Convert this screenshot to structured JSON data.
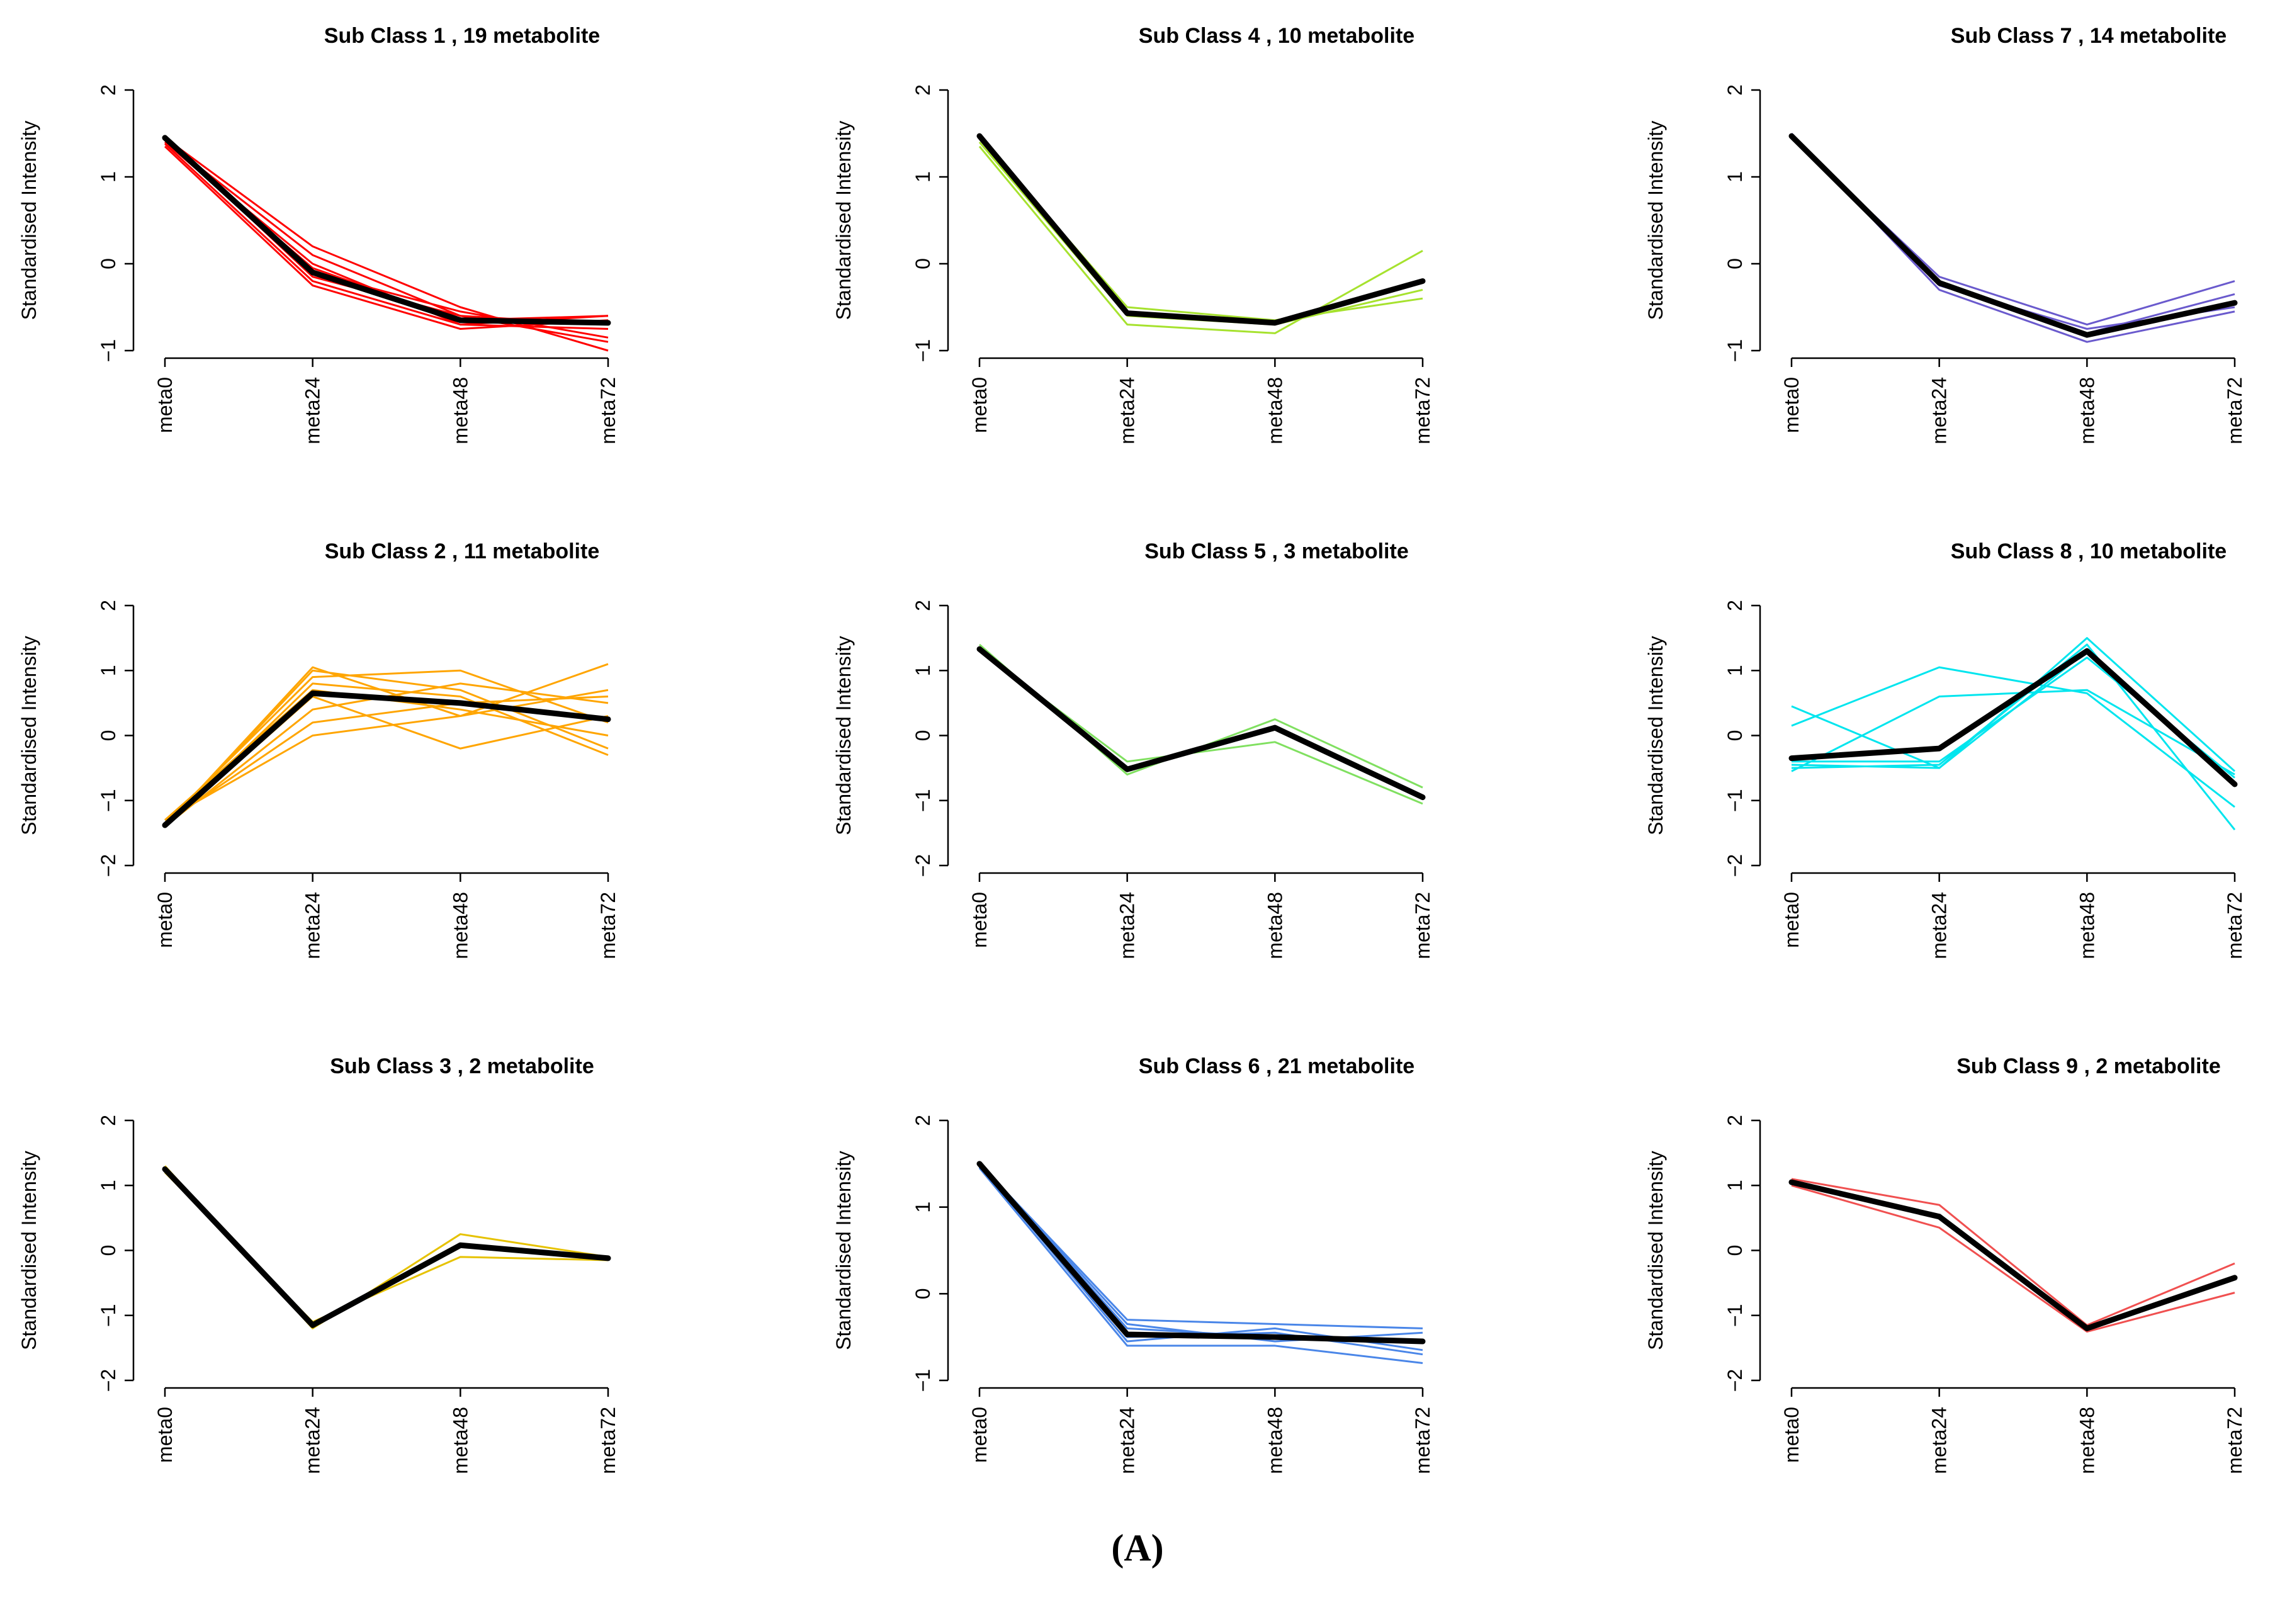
{
  "caption": "(A)",
  "colors": {
    "mean_line": "#000000"
  },
  "chart_data": [
    {
      "type": "line",
      "title": "Sub Class  1  , 19 metabolite",
      "ylabel": "Standardised Intensity",
      "xlabel": "",
      "categories": [
        "meta0",
        "meta24",
        "meta48",
        "meta72"
      ],
      "ylim": [
        -1,
        2
      ],
      "yticks": [
        -1,
        0,
        1,
        2
      ],
      "color": "#ff0000",
      "series": [
        {
          "values": [
            1.45,
            -0.15,
            -0.6,
            -0.7
          ]
        },
        {
          "values": [
            1.35,
            -0.25,
            -0.75,
            -0.65
          ]
        },
        {
          "values": [
            1.45,
            0.2,
            -0.5,
            -1.0
          ]
        },
        {
          "values": [
            1.4,
            0.0,
            -0.7,
            -0.6
          ]
        },
        {
          "values": [
            1.45,
            -0.1,
            -0.55,
            -0.85
          ]
        },
        {
          "values": [
            1.38,
            -0.2,
            -0.7,
            -0.75
          ]
        },
        {
          "values": [
            1.42,
            0.1,
            -0.6,
            -0.9
          ]
        },
        {
          "values": [
            1.4,
            -0.05,
            -0.65,
            -0.6
          ]
        }
      ],
      "mean": [
        1.45,
        -0.1,
        -0.65,
        -0.68
      ]
    },
    {
      "type": "line",
      "title": "Sub Class  2  , 11 metabolite",
      "ylabel": "Standardised Intensity",
      "xlabel": "",
      "categories": [
        "meta0",
        "meta24",
        "meta48",
        "meta72"
      ],
      "ylim": [
        -2,
        2
      ],
      "yticks": [
        -2,
        -1,
        0,
        1,
        2
      ],
      "color": "#ffa500",
      "series": [
        {
          "values": [
            -1.4,
            1.05,
            0.3,
            1.1
          ]
        },
        {
          "values": [
            -1.35,
            0.9,
            1.0,
            0.2
          ]
        },
        {
          "values": [
            -1.4,
            0.4,
            0.8,
            0.5
          ]
        },
        {
          "values": [
            -1.3,
            0.0,
            0.3,
            0.7
          ]
        },
        {
          "values": [
            -1.4,
            0.6,
            -0.2,
            0.3
          ]
        },
        {
          "values": [
            -1.4,
            0.8,
            0.6,
            -0.3
          ]
        },
        {
          "values": [
            -1.35,
            0.2,
            0.5,
            0.6
          ]
        },
        {
          "values": [
            -1.4,
            1.0,
            0.7,
            -0.2
          ]
        },
        {
          "values": [
            -1.3,
            0.7,
            0.4,
            0.0
          ]
        }
      ],
      "mean": [
        -1.38,
        0.65,
        0.5,
        0.25
      ]
    },
    {
      "type": "line",
      "title": "Sub Class  3  , 2 metabolite",
      "ylabel": "Standardised Intensity",
      "xlabel": "",
      "categories": [
        "meta0",
        "meta24",
        "meta48",
        "meta72"
      ],
      "ylim": [
        -2,
        2
      ],
      "yticks": [
        -2,
        -1,
        0,
        1,
        2
      ],
      "color": "#e6c200",
      "series": [
        {
          "values": [
            1.3,
            -1.2,
            0.25,
            -0.1
          ]
        },
        {
          "values": [
            1.2,
            -1.1,
            -0.1,
            -0.15
          ]
        }
      ],
      "mean": [
        1.25,
        -1.15,
        0.08,
        -0.12
      ]
    },
    {
      "type": "line",
      "title": "Sub Class  4  , 10 metabolite",
      "ylabel": "Standardised Intensity",
      "xlabel": "",
      "categories": [
        "meta0",
        "meta24",
        "meta48",
        "meta72"
      ],
      "ylim": [
        -1,
        2
      ],
      "yticks": [
        -1,
        0,
        1,
        2
      ],
      "color": "#a6e22e",
      "series": [
        {
          "values": [
            1.35,
            -0.7,
            -0.8,
            0.15
          ]
        },
        {
          "values": [
            1.45,
            -0.5,
            -0.65,
            -0.4
          ]
        },
        {
          "values": [
            1.4,
            -0.6,
            -0.7,
            -0.3
          ]
        }
      ],
      "mean": [
        1.47,
        -0.57,
        -0.68,
        -0.2
      ]
    },
    {
      "type": "line",
      "title": "Sub Class  5  , 3 metabolite",
      "ylabel": "Standardised Intensity",
      "xlabel": "",
      "categories": [
        "meta0",
        "meta24",
        "meta48",
        "meta72"
      ],
      "ylim": [
        -2,
        2
      ],
      "yticks": [
        -2,
        -1,
        0,
        1,
        2
      ],
      "color": "#80e060",
      "series": [
        {
          "values": [
            1.4,
            -0.6,
            0.25,
            -0.8
          ]
        },
        {
          "values": [
            1.3,
            -0.4,
            -0.1,
            -1.05
          ]
        },
        {
          "values": [
            1.35,
            -0.55,
            0.15,
            -0.95
          ]
        }
      ],
      "mean": [
        1.33,
        -0.52,
        0.12,
        -0.95
      ]
    },
    {
      "type": "line",
      "title": "Sub Class  6  , 21 metabolite",
      "ylabel": "Standardised Intensity",
      "xlabel": "",
      "categories": [
        "meta0",
        "meta24",
        "meta48",
        "meta72"
      ],
      "ylim": [
        -1,
        2
      ],
      "yticks": [
        -1,
        0,
        1,
        2
      ],
      "color": "#4a86e8",
      "series": [
        {
          "values": [
            1.5,
            -0.3,
            -0.35,
            -0.4
          ]
        },
        {
          "values": [
            1.45,
            -0.6,
            -0.6,
            -0.8
          ]
        },
        {
          "values": [
            1.5,
            -0.4,
            -0.5,
            -0.55
          ]
        },
        {
          "values": [
            1.48,
            -0.55,
            -0.4,
            -0.65
          ]
        },
        {
          "values": [
            1.5,
            -0.35,
            -0.55,
            -0.45
          ]
        },
        {
          "values": [
            1.46,
            -0.5,
            -0.45,
            -0.7
          ]
        }
      ],
      "mean": [
        1.5,
        -0.47,
        -0.5,
        -0.55
      ]
    },
    {
      "type": "line",
      "title": "Sub Class  7  , 14 metabolite",
      "ylabel": "Standardised Intensity",
      "xlabel": "",
      "categories": [
        "meta0",
        "meta24",
        "meta48",
        "meta72"
      ],
      "ylim": [
        -1,
        2
      ],
      "yticks": [
        -1,
        0,
        1,
        2
      ],
      "color": "#6a5acd",
      "series": [
        {
          "values": [
            1.45,
            -0.15,
            -0.7,
            -0.2
          ]
        },
        {
          "values": [
            1.5,
            -0.3,
            -0.9,
            -0.55
          ]
        },
        {
          "values": [
            1.47,
            -0.2,
            -0.8,
            -0.35
          ]
        },
        {
          "values": [
            1.48,
            -0.25,
            -0.75,
            -0.5
          ]
        }
      ],
      "mean": [
        1.47,
        -0.22,
        -0.82,
        -0.45
      ]
    },
    {
      "type": "line",
      "title": "Sub Class  8  , 10 metabolite",
      "ylabel": "Standardised Intensity",
      "xlabel": "",
      "categories": [
        "meta0",
        "meta24",
        "meta48",
        "meta72"
      ],
      "ylim": [
        -2,
        2
      ],
      "yticks": [
        -2,
        -1,
        0,
        1,
        2
      ],
      "color": "#00e5ee",
      "series": [
        {
          "values": [
            0.45,
            -0.5,
            1.5,
            -0.55
          ]
        },
        {
          "values": [
            0.15,
            1.05,
            0.65,
            -1.1
          ]
        },
        {
          "values": [
            -0.55,
            0.6,
            0.7,
            -0.6
          ]
        },
        {
          "values": [
            -0.5,
            -0.45,
            1.4,
            -1.45
          ]
        },
        {
          "values": [
            -0.4,
            -0.4,
            1.2,
            -0.65
          ]
        },
        {
          "values": [
            -0.45,
            -0.5,
            1.3,
            -0.75
          ]
        }
      ],
      "mean": [
        -0.35,
        -0.2,
        1.3,
        -0.75
      ]
    },
    {
      "type": "line",
      "title": "Sub Class  9  , 2 metabolite",
      "ylabel": "Standardised Intensity",
      "xlabel": "",
      "categories": [
        "meta0",
        "meta24",
        "meta48",
        "meta72"
      ],
      "ylim": [
        -2,
        2
      ],
      "yticks": [
        -2,
        -1,
        0,
        1,
        2
      ],
      "color": "#f05050",
      "series": [
        {
          "values": [
            1.1,
            0.7,
            -1.15,
            -0.2
          ]
        },
        {
          "values": [
            1.0,
            0.35,
            -1.25,
            -0.65
          ]
        }
      ],
      "mean": [
        1.05,
        0.52,
        -1.2,
        -0.42
      ]
    }
  ]
}
